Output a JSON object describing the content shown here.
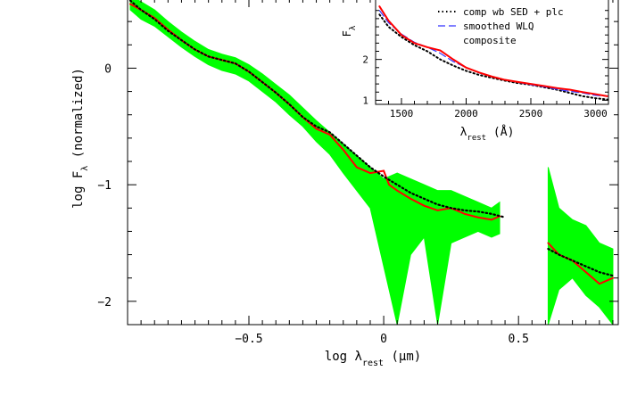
{
  "chart_data": [
    {
      "type": "line",
      "xlabel": "log λrest (μm)",
      "ylabel": "log Fλ (normalized)",
      "xlim": [
        -0.95,
        0.87
      ],
      "ylim": [
        -2.2,
        0.6
      ],
      "x_ticks": [
        -0.5,
        0,
        0.5
      ],
      "x_tick_labels": [
        "−0.5",
        "0",
        "0.5"
      ],
      "y_ticks": [
        0,
        -1,
        -2
      ],
      "y_tick_labels": [
        "0",
        "−1",
        "−2"
      ],
      "grid": false,
      "series": [
        {
          "style": "green-band",
          "color": "#00ff00",
          "segments": [
            [
              [
                -0.94,
                0.62,
                0.5
              ],
              [
                -0.9,
                0.57,
                0.42
              ],
              [
                -0.85,
                0.5,
                0.36
              ],
              [
                -0.8,
                0.4,
                0.27
              ],
              [
                -0.75,
                0.31,
                0.18
              ],
              [
                -0.7,
                0.23,
                0.1
              ],
              [
                -0.65,
                0.16,
                0.03
              ],
              [
                -0.6,
                0.12,
                -0.02
              ],
              [
                -0.55,
                0.09,
                -0.05
              ],
              [
                -0.5,
                0.03,
                -0.11
              ],
              [
                -0.45,
                -0.05,
                -0.2
              ],
              [
                -0.4,
                -0.14,
                -0.29
              ],
              [
                -0.35,
                -0.23,
                -0.4
              ],
              [
                -0.3,
                -0.34,
                -0.5
              ],
              [
                -0.25,
                -0.45,
                -0.63
              ],
              [
                -0.2,
                -0.55,
                -0.74
              ],
              [
                -0.15,
                -0.65,
                -0.9
              ],
              [
                -0.1,
                -0.75,
                -1.05
              ],
              [
                -0.05,
                -0.85,
                -1.2
              ],
              [
                0.0,
                -0.95,
                -1.7
              ],
              [
                0.05,
                -0.9,
                -2.2
              ],
              [
                0.1,
                -0.95,
                -1.6
              ],
              [
                0.15,
                -1.0,
                -1.45
              ],
              [
                0.2,
                -1.05,
                -2.2
              ],
              [
                0.25,
                -1.05,
                -1.5
              ],
              [
                0.3,
                -1.1,
                -1.45
              ],
              [
                0.35,
                -1.15,
                -1.4
              ],
              [
                0.4,
                -1.2,
                -1.45
              ],
              [
                0.43,
                -1.15,
                -1.42
              ]
            ],
            [
              [
                0.61,
                -0.85,
                -2.2
              ],
              [
                0.65,
                -1.2,
                -1.9
              ],
              [
                0.7,
                -1.3,
                -1.8
              ],
              [
                0.75,
                -1.35,
                -1.95
              ],
              [
                0.8,
                -1.5,
                -2.05
              ],
              [
                0.85,
                -1.55,
                -2.2
              ]
            ]
          ]
        },
        {
          "name": "composite",
          "style": "solid",
          "color": "#ff0000",
          "segments": [
            [
              [
                -0.94,
                0.55
              ],
              [
                -0.9,
                0.5
              ],
              [
                -0.85,
                0.43
              ],
              [
                -0.8,
                0.33
              ],
              [
                -0.75,
                0.24
              ],
              [
                -0.7,
                0.16
              ],
              [
                -0.65,
                0.1
              ],
              [
                -0.6,
                0.07
              ],
              [
                -0.55,
                0.04
              ],
              [
                -0.5,
                -0.03
              ],
              [
                -0.45,
                -0.12
              ],
              [
                -0.4,
                -0.21
              ],
              [
                -0.35,
                -0.31
              ],
              [
                -0.3,
                -0.42
              ],
              [
                -0.25,
                -0.52
              ],
              [
                -0.2,
                -0.57
              ],
              [
                -0.15,
                -0.7
              ],
              [
                -0.1,
                -0.85
              ],
              [
                -0.05,
                -0.9
              ],
              [
                0.0,
                -0.88
              ],
              [
                0.02,
                -1.0
              ],
              [
                0.05,
                -1.05
              ],
              [
                0.1,
                -1.12
              ],
              [
                0.15,
                -1.18
              ],
              [
                0.2,
                -1.22
              ],
              [
                0.25,
                -1.2
              ],
              [
                0.3,
                -1.25
              ],
              [
                0.35,
                -1.28
              ],
              [
                0.4,
                -1.3
              ],
              [
                0.43,
                -1.27
              ]
            ],
            [
              [
                0.61,
                -1.5
              ],
              [
                0.65,
                -1.6
              ],
              [
                0.7,
                -1.65
              ],
              [
                0.75,
                -1.75
              ],
              [
                0.8,
                -1.85
              ],
              [
                0.85,
                -1.8
              ]
            ]
          ]
        },
        {
          "name": "comp wb SED + plc",
          "style": "dotted",
          "color": "#000000",
          "segments": [
            [
              [
                -0.94,
                0.58
              ],
              [
                -0.9,
                0.5
              ],
              [
                -0.85,
                0.42
              ],
              [
                -0.8,
                0.32
              ],
              [
                -0.75,
                0.24
              ],
              [
                -0.7,
                0.16
              ],
              [
                -0.65,
                0.1
              ],
              [
                -0.6,
                0.07
              ],
              [
                -0.55,
                0.04
              ],
              [
                -0.5,
                -0.03
              ],
              [
                -0.45,
                -0.12
              ],
              [
                -0.4,
                -0.21
              ],
              [
                -0.35,
                -0.31
              ],
              [
                -0.3,
                -0.42
              ],
              [
                -0.25,
                -0.5
              ],
              [
                -0.2,
                -0.55
              ],
              [
                -0.15,
                -0.65
              ],
              [
                -0.1,
                -0.75
              ],
              [
                -0.05,
                -0.85
              ],
              [
                0.0,
                -0.93
              ],
              [
                0.05,
                -1.0
              ],
              [
                0.1,
                -1.07
              ],
              [
                0.15,
                -1.12
              ],
              [
                0.2,
                -1.17
              ],
              [
                0.25,
                -1.2
              ],
              [
                0.3,
                -1.22
              ],
              [
                0.35,
                -1.23
              ],
              [
                0.4,
                -1.25
              ],
              [
                0.45,
                -1.28
              ]
            ],
            [
              [
                0.61,
                -1.55
              ],
              [
                0.65,
                -1.6
              ],
              [
                0.7,
                -1.65
              ],
              [
                0.75,
                -1.7
              ],
              [
                0.8,
                -1.75
              ],
              [
                0.85,
                -1.78
              ]
            ]
          ]
        }
      ]
    },
    {
      "type": "line",
      "xlabel": "λrest (Å)",
      "ylabel": "Fλ",
      "xlim": [
        1300,
        3100
      ],
      "ylim": [
        0.9,
        3.5
      ],
      "x_ticks": [
        1500,
        2000,
        2500,
        3000
      ],
      "x_tick_labels": [
        "1500",
        "2000",
        "2500",
        "3000"
      ],
      "y_ticks": [
        1,
        2
      ],
      "y_tick_labels": [
        "1",
        "2"
      ],
      "legend": "top-right",
      "series": [
        {
          "name": "comp wb SED + plc",
          "style": "dotted",
          "color": "#000000",
          "points": [
            [
              1330,
              3.1
            ],
            [
              1400,
              2.8
            ],
            [
              1500,
              2.55
            ],
            [
              1600,
              2.35
            ],
            [
              1700,
              2.2
            ],
            [
              1800,
              2.0
            ],
            [
              1900,
              1.85
            ],
            [
              2000,
              1.72
            ],
            [
              2100,
              1.62
            ],
            [
              2200,
              1.55
            ],
            [
              2300,
              1.48
            ],
            [
              2400,
              1.42
            ],
            [
              2500,
              1.38
            ],
            [
              2600,
              1.32
            ],
            [
              2700,
              1.26
            ],
            [
              2800,
              1.18
            ],
            [
              2900,
              1.1
            ],
            [
              3000,
              1.05
            ],
            [
              3090,
              1.02
            ]
          ]
        },
        {
          "name": "smoothed WLQ",
          "style": "dashed",
          "color": "#3333ff",
          "points": [
            [
              1330,
              3.2
            ],
            [
              1400,
              2.9
            ],
            [
              1500,
              2.62
            ],
            [
              1600,
              2.42
            ],
            [
              1700,
              2.3
            ],
            [
              1800,
              2.15
            ],
            [
              1900,
              1.95
            ],
            [
              2000,
              1.8
            ],
            [
              2100,
              1.67
            ],
            [
              2200,
              1.58
            ],
            [
              2300,
              1.5
            ],
            [
              2400,
              1.44
            ],
            [
              2500,
              1.38
            ],
            [
              2600,
              1.33
            ],
            [
              2700,
              1.27
            ],
            [
              2800,
              1.22
            ],
            [
              2900,
              1.18
            ],
            [
              3000,
              1.12
            ],
            [
              3090,
              1.1
            ]
          ]
        },
        {
          "name": "composite",
          "style": "solid",
          "color": "#ff0000",
          "points": [
            [
              1330,
              3.3
            ],
            [
              1400,
              2.95
            ],
            [
              1500,
              2.6
            ],
            [
              1600,
              2.4
            ],
            [
              1700,
              2.3
            ],
            [
              1800,
              2.22
            ],
            [
              1900,
              2.0
            ],
            [
              2000,
              1.8
            ],
            [
              2100,
              1.68
            ],
            [
              2200,
              1.58
            ],
            [
              2300,
              1.5
            ],
            [
              2400,
              1.45
            ],
            [
              2500,
              1.4
            ],
            [
              2600,
              1.35
            ],
            [
              2700,
              1.3
            ],
            [
              2800,
              1.26
            ],
            [
              2900,
              1.2
            ],
            [
              3000,
              1.15
            ],
            [
              3090,
              1.1
            ]
          ]
        }
      ]
    }
  ]
}
